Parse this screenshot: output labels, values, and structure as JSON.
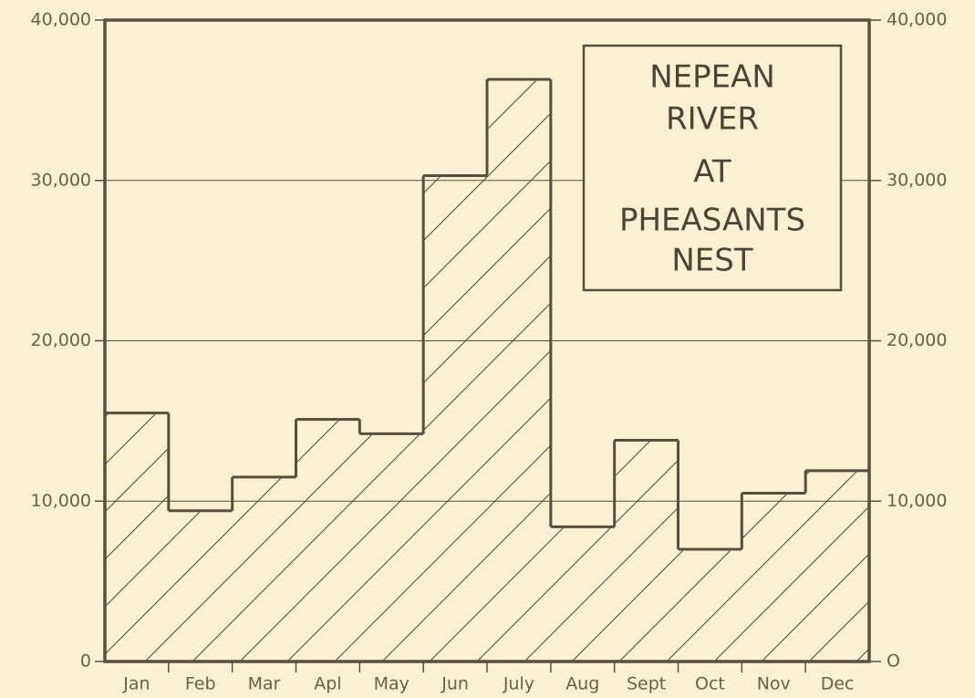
{
  "chart_data": {
    "type": "step",
    "title_lines": [
      "NEPEAN",
      "RIVER",
      "AT",
      "PHEASANTS",
      "NEST"
    ],
    "categories": [
      "Jan",
      "Feb",
      "Mar",
      "Apl",
      "May",
      "Jun",
      "July",
      "Aug",
      "Sept",
      "Oct",
      "Nov",
      "Dec"
    ],
    "values": [
      15500,
      9400,
      11500,
      15100,
      14200,
      30300,
      36300,
      8400,
      13800,
      7000,
      10500,
      11900
    ],
    "color": "#5a4e3c",
    "ylim": [
      0,
      40000
    ],
    "yticks": [
      0,
      {
        "value": 10000,
        "label": "10,000"
      },
      {
        "value": 20000,
        "label": "20,000"
      },
      {
        "value": 30000,
        "label": "30,000"
      },
      {
        "value": 40000,
        "label": "40,000"
      }
    ],
    "y2lim": [
      0,
      40000
    ],
    "y2ticks": [
      {
        "value": 0,
        "label": "O"
      },
      {
        "value": 10000,
        "label": "10,000"
      },
      {
        "value": 20000,
        "label": "20,000"
      },
      {
        "value": 30000,
        "label": "30,000"
      },
      {
        "value": 40000,
        "label": "40,000"
      }
    ],
    "grid": true,
    "hatch": true
  }
}
